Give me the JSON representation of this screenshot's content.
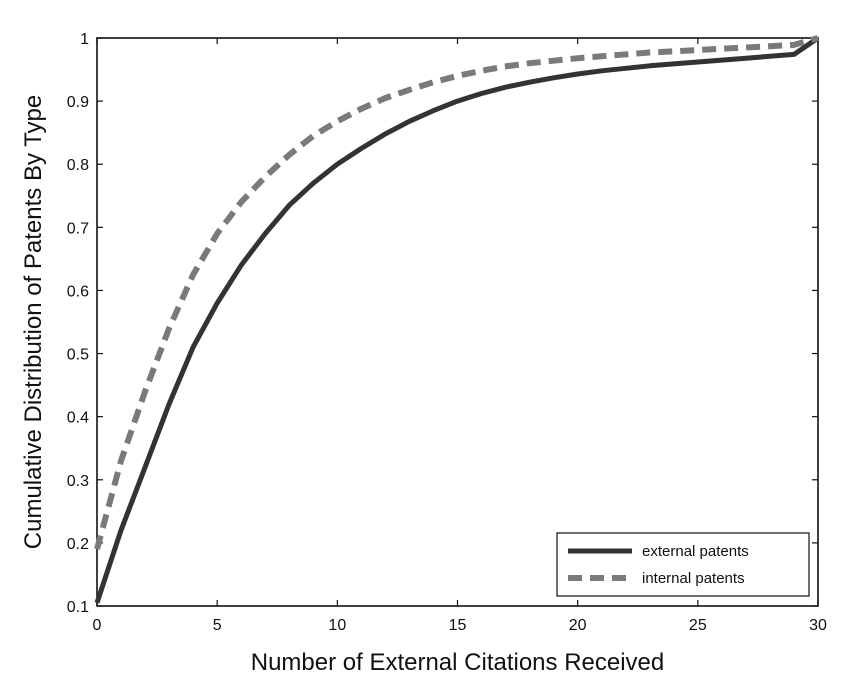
{
  "chart_data": {
    "type": "line",
    "title": "",
    "xlabel": "Number of External Citations Received",
    "ylabel": "Cumulative Distribution of Patents By Type",
    "xlim": [
      0,
      30
    ],
    "ylim": [
      0.1,
      1
    ],
    "xticks": [
      0,
      5,
      10,
      15,
      20,
      25,
      30
    ],
    "yticks": [
      0.1,
      0.2,
      0.3,
      0.4,
      0.5,
      0.6,
      0.7,
      0.8,
      0.9,
      1
    ],
    "xtick_labels": [
      "0",
      "5",
      "10",
      "15",
      "20",
      "25",
      "30"
    ],
    "ytick_labels": [
      "0.1",
      "0.2",
      "0.3",
      "0.4",
      "0.5",
      "0.6",
      "0.7",
      "0.8",
      "0.9",
      "1"
    ],
    "grid": false,
    "legend_position": "bottom-right",
    "series": [
      {
        "name": "external patents",
        "style": "solid",
        "color": "#333333",
        "x": [
          0,
          1,
          2,
          3,
          4,
          5,
          6,
          7,
          8,
          9,
          10,
          11,
          12,
          13,
          14,
          15,
          16,
          17,
          18,
          19,
          20,
          21,
          22,
          23,
          24,
          25,
          26,
          27,
          28,
          29,
          30
        ],
        "y": [
          0.105,
          0.22,
          0.32,
          0.42,
          0.51,
          0.58,
          0.64,
          0.69,
          0.735,
          0.77,
          0.8,
          0.825,
          0.848,
          0.868,
          0.885,
          0.9,
          0.912,
          0.922,
          0.93,
          0.937,
          0.943,
          0.948,
          0.952,
          0.956,
          0.959,
          0.962,
          0.965,
          0.968,
          0.971,
          0.974,
          1.0
        ]
      },
      {
        "name": "internal patents",
        "style": "dashed",
        "color": "#7a7a7a",
        "x": [
          0,
          1,
          2,
          3,
          4,
          5,
          6,
          7,
          8,
          9,
          10,
          11,
          12,
          13,
          14,
          15,
          16,
          17,
          18,
          19,
          20,
          21,
          22,
          23,
          24,
          25,
          26,
          27,
          28,
          29,
          30
        ],
        "y": [
          0.19,
          0.33,
          0.44,
          0.54,
          0.625,
          0.69,
          0.74,
          0.78,
          0.815,
          0.845,
          0.868,
          0.888,
          0.905,
          0.918,
          0.93,
          0.94,
          0.948,
          0.955,
          0.96,
          0.964,
          0.968,
          0.971,
          0.974,
          0.977,
          0.979,
          0.981,
          0.983,
          0.985,
          0.987,
          0.989,
          1.0
        ]
      }
    ]
  }
}
